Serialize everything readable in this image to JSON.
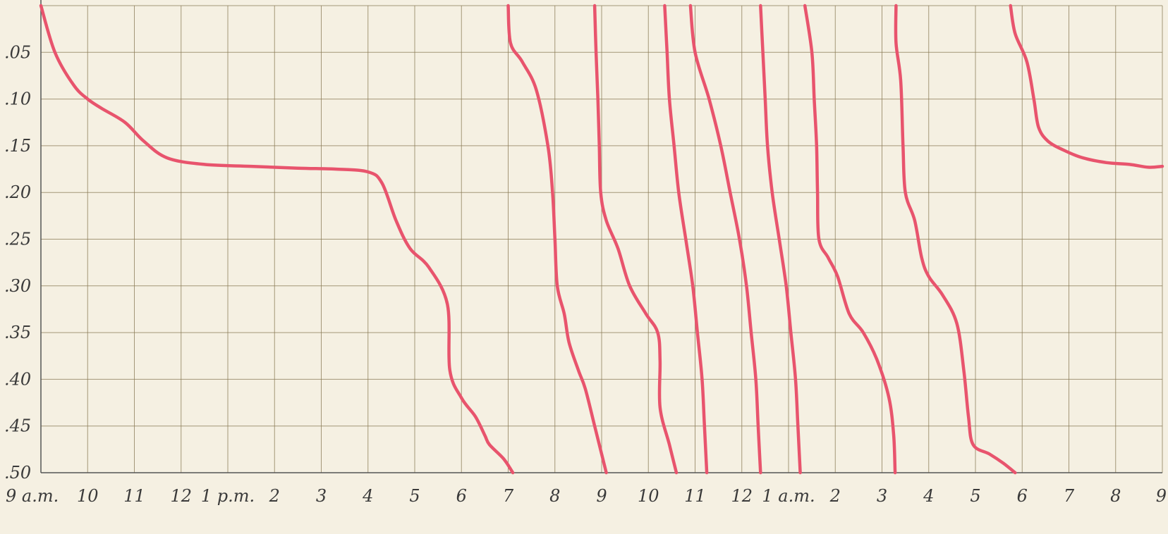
{
  "chart_data": {
    "type": "line",
    "title": "",
    "xlabel": "",
    "ylabel": "",
    "grid": true,
    "legend": "none",
    "x_unit": "hours after 9 a.m.",
    "xlim": [
      0,
      24
    ],
    "ylim": [
      0,
      0.5
    ],
    "y_axis_inverted": true,
    "x_tick_labels": [
      "9 a.m.",
      "10",
      "11",
      "12",
      "1 p.m.",
      "2",
      "3",
      "4",
      "5",
      "6",
      "7",
      "8",
      "9",
      "10",
      "11",
      "12",
      "1 a.m.",
      "2",
      "3",
      "4",
      "5",
      "6",
      "7",
      "8",
      "9"
    ],
    "y_tick_labels": [
      ".05",
      ".10",
      ".15",
      ".20",
      ".25",
      ".30",
      ".35",
      ".40",
      ".45",
      ".50"
    ],
    "series": [
      {
        "values": [
          [
            0.0,
            0.0
          ],
          [
            0.3,
            0.05
          ],
          [
            0.7,
            0.085
          ],
          [
            1.0,
            0.1
          ],
          [
            1.3,
            0.11
          ],
          [
            1.8,
            0.125
          ],
          [
            2.2,
            0.145
          ],
          [
            2.7,
            0.163
          ],
          [
            3.5,
            0.17
          ],
          [
            4.5,
            0.172
          ],
          [
            5.5,
            0.174
          ],
          [
            6.3,
            0.175
          ],
          [
            7.0,
            0.178
          ],
          [
            7.3,
            0.19
          ],
          [
            7.6,
            0.23
          ],
          [
            7.9,
            0.26
          ],
          [
            8.3,
            0.28
          ],
          [
            8.7,
            0.32
          ],
          [
            8.75,
            0.39
          ],
          [
            9.0,
            0.42
          ],
          [
            9.3,
            0.44
          ],
          [
            9.5,
            0.46
          ],
          [
            9.6,
            0.47
          ],
          [
            9.9,
            0.485
          ],
          [
            10.1,
            0.5
          ]
        ]
      },
      {
        "values": [
          [
            10.0,
            0.0
          ],
          [
            10.05,
            0.04
          ],
          [
            10.3,
            0.06
          ],
          [
            10.6,
            0.09
          ],
          [
            10.85,
            0.15
          ],
          [
            10.95,
            0.2
          ],
          [
            11.0,
            0.25
          ],
          [
            11.05,
            0.3
          ],
          [
            11.2,
            0.33
          ],
          [
            11.3,
            0.36
          ],
          [
            11.5,
            0.39
          ],
          [
            11.65,
            0.41
          ],
          [
            11.85,
            0.45
          ],
          [
            12.0,
            0.48
          ],
          [
            12.1,
            0.5
          ]
        ]
      },
      {
        "values": [
          [
            11.85,
            0.0
          ],
          [
            11.88,
            0.05
          ],
          [
            11.92,
            0.1
          ],
          [
            11.95,
            0.15
          ],
          [
            11.98,
            0.2
          ],
          [
            12.1,
            0.23
          ],
          [
            12.35,
            0.26
          ],
          [
            12.6,
            0.3
          ],
          [
            12.95,
            0.33
          ],
          [
            13.2,
            0.35
          ],
          [
            13.25,
            0.38
          ],
          [
            13.25,
            0.43
          ],
          [
            13.45,
            0.47
          ],
          [
            13.6,
            0.5
          ]
        ]
      },
      {
        "values": [
          [
            13.35,
            0.0
          ],
          [
            13.4,
            0.05
          ],
          [
            13.45,
            0.1
          ],
          [
            13.55,
            0.15
          ],
          [
            13.65,
            0.2
          ],
          [
            13.8,
            0.25
          ],
          [
            13.95,
            0.3
          ],
          [
            14.05,
            0.35
          ],
          [
            14.15,
            0.4
          ],
          [
            14.2,
            0.45
          ],
          [
            14.25,
            0.5
          ]
        ]
      },
      {
        "values": [
          [
            13.9,
            0.0
          ],
          [
            14.0,
            0.05
          ],
          [
            14.3,
            0.1
          ],
          [
            14.55,
            0.15
          ],
          [
            14.75,
            0.2
          ],
          [
            14.95,
            0.25
          ],
          [
            15.1,
            0.3
          ],
          [
            15.2,
            0.35
          ],
          [
            15.3,
            0.4
          ],
          [
            15.35,
            0.45
          ],
          [
            15.4,
            0.5
          ]
        ]
      },
      {
        "values": [
          [
            15.4,
            0.0
          ],
          [
            15.45,
            0.05
          ],
          [
            15.5,
            0.1
          ],
          [
            15.55,
            0.15
          ],
          [
            15.65,
            0.2
          ],
          [
            15.8,
            0.25
          ],
          [
            15.95,
            0.3
          ],
          [
            16.05,
            0.35
          ],
          [
            16.15,
            0.4
          ],
          [
            16.2,
            0.45
          ],
          [
            16.25,
            0.5
          ]
        ]
      },
      {
        "values": [
          [
            16.35,
            0.0
          ],
          [
            16.5,
            0.05
          ],
          [
            16.55,
            0.1
          ],
          [
            16.6,
            0.15
          ],
          [
            16.62,
            0.2
          ],
          [
            16.65,
            0.25
          ],
          [
            16.85,
            0.27
          ],
          [
            17.05,
            0.29
          ],
          [
            17.3,
            0.33
          ],
          [
            17.6,
            0.35
          ],
          [
            17.9,
            0.38
          ],
          [
            18.15,
            0.42
          ],
          [
            18.25,
            0.46
          ],
          [
            18.28,
            0.5
          ]
        ]
      },
      {
        "values": [
          [
            18.3,
            0.0
          ],
          [
            18.3,
            0.04
          ],
          [
            18.4,
            0.08
          ],
          [
            18.45,
            0.15
          ],
          [
            18.5,
            0.2
          ],
          [
            18.7,
            0.23
          ],
          [
            18.85,
            0.27
          ],
          [
            19.0,
            0.29
          ],
          [
            19.3,
            0.31
          ],
          [
            19.6,
            0.34
          ],
          [
            19.75,
            0.39
          ],
          [
            19.85,
            0.44
          ],
          [
            19.95,
            0.47
          ],
          [
            20.3,
            0.48
          ],
          [
            20.6,
            0.49
          ],
          [
            20.85,
            0.5
          ]
        ]
      },
      {
        "values": [
          [
            20.75,
            0.0
          ],
          [
            20.85,
            0.03
          ],
          [
            21.1,
            0.06
          ],
          [
            21.25,
            0.1
          ],
          [
            21.35,
            0.13
          ],
          [
            21.55,
            0.145
          ],
          [
            21.9,
            0.155
          ],
          [
            22.3,
            0.163
          ],
          [
            22.8,
            0.168
          ],
          [
            23.3,
            0.17
          ],
          [
            23.7,
            0.173
          ],
          [
            24.0,
            0.172
          ]
        ]
      }
    ],
    "line_color": "#e8546d",
    "grid_color": "#8a7a55",
    "background_color": "#f5f0e2"
  }
}
